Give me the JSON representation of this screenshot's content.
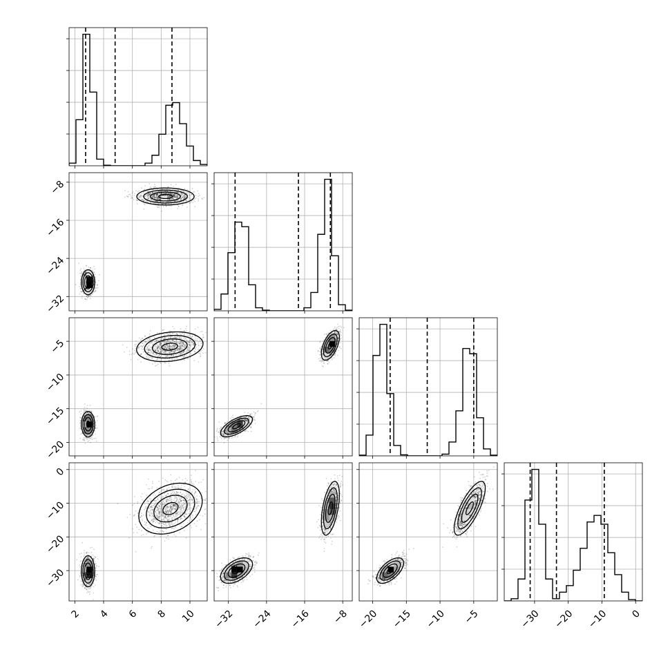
{
  "chart_data": {
    "type": "corner",
    "parameters": 4,
    "grid": true,
    "quantile_lines": "dashed",
    "axes": [
      {
        "range": [
          1.6,
          11.2
        ],
        "ticks": [
          2,
          4,
          6,
          8,
          10
        ],
        "tick_labels": [
          "2",
          "4",
          "6",
          "8",
          "10"
        ]
      },
      {
        "range": [
          -35,
          -6
        ],
        "ticks": [
          -32,
          -24,
          -16,
          -8
        ],
        "tick_labels": [
          "−32",
          "−24",
          "−16",
          "−8"
        ]
      },
      {
        "range": [
          -22,
          -1.5
        ],
        "ticks": [
          -20,
          -15,
          -10,
          -5
        ],
        "tick_labels": [
          "−20",
          "−15",
          "−10",
          "−5"
        ]
      },
      {
        "range": [
          -39,
          2
        ],
        "ticks": [
          -30,
          -20,
          -10,
          0
        ],
        "tick_labels": [
          "−30",
          "−20",
          "−10",
          "0"
        ]
      }
    ],
    "histograms": [
      {
        "param": 0,
        "bin_edges": [
          1.6,
          2.08,
          2.56,
          3.04,
          3.52,
          4.0,
          4.48,
          4.96,
          5.44,
          5.92,
          6.4,
          6.88,
          7.36,
          7.84,
          8.32,
          8.8,
          9.28,
          9.76,
          10.24,
          10.72,
          11.2
        ],
        "counts": [
          0.1,
          1.75,
          5.0,
          2.8,
          0.25,
          0.02,
          0,
          0,
          0,
          0,
          0,
          0.1,
          0.4,
          1.2,
          2.3,
          2.4,
          1.6,
          0.75,
          0.2,
          0.05
        ],
        "quantiles": [
          2.75,
          4.8,
          8.75
        ]
      },
      {
        "param": 1,
        "bin_edges": [
          -35,
          -33.55,
          -32.1,
          -30.65,
          -29.2,
          -27.75,
          -26.3,
          -24.85,
          -23.4,
          -21.95,
          -20.5,
          -19.05,
          -17.6,
          -16.15,
          -14.7,
          -13.25,
          -11.8,
          -10.35,
          -8.9,
          -7.45,
          -6.0
        ],
        "counts": [
          0.05,
          0.55,
          1.9,
          2.9,
          2.75,
          0.85,
          0.1,
          0.02,
          0,
          0,
          0,
          0,
          0,
          0.1,
          0.6,
          2.5,
          4.3,
          1.8,
          0.2,
          0.02
        ],
        "quantiles": [
          -30.6,
          -17.3,
          -10.6
        ]
      },
      {
        "param": 2,
        "bin_edges": [
          -22,
          -20.975,
          -19.95,
          -18.925,
          -17.9,
          -16.875,
          -15.85,
          -14.825,
          -13.8,
          -12.775,
          -11.75,
          -10.725,
          -9.7,
          -8.675,
          -7.65,
          -6.625,
          -5.6,
          -4.575,
          -3.55,
          -2.525,
          -1.5
        ],
        "counts": [
          0.02,
          0.6,
          2.9,
          3.8,
          1.8,
          0.3,
          0.03,
          0,
          0,
          0,
          0,
          0,
          0.05,
          0.4,
          1.3,
          3.1,
          2.95,
          1.1,
          0.2,
          0.02
        ],
        "quantiles": [
          -17.4,
          -11.9,
          -5.0
        ]
      },
      {
        "param": 3,
        "bin_edges": [
          -39,
          -36.95,
          -34.9,
          -32.85,
          -30.8,
          -28.75,
          -26.7,
          -24.65,
          -22.6,
          -20.55,
          -18.5,
          -16.45,
          -14.4,
          -12.35,
          -10.3,
          -8.25,
          -6.2,
          -4.15,
          -2.1,
          -0.05,
          2.0
        ],
        "counts": [
          0,
          0.05,
          0.5,
          2.3,
          3.0,
          1.75,
          0.5,
          0.05,
          0.2,
          0.35,
          0.7,
          1.2,
          1.8,
          1.95,
          1.75,
          1.1,
          0.6,
          0.2,
          0.03,
          0
        ],
        "quantiles": [
          -31.3,
          -23.5,
          -9.3
        ]
      }
    ],
    "scatter_pairs": [
      {
        "x_param": 0,
        "y_param": 1,
        "clusters": [
          {
            "mean": [
              2.92,
              -29.0
            ],
            "std": [
              0.22,
              1.25
            ],
            "corr": 0.0
          },
          {
            "mean": [
              8.3,
              -11.0
            ],
            "std": [
              0.95,
              0.85
            ],
            "corr": 0.0
          }
        ]
      },
      {
        "x_param": 0,
        "y_param": 2,
        "clusters": [
          {
            "mean": [
              2.92,
              -17.3
            ],
            "std": [
              0.22,
              0.9
            ],
            "corr": 0.0
          },
          {
            "mean": [
              8.6,
              -5.8
            ],
            "std": [
              1.1,
              1.05
            ],
            "corr": 0.2
          }
        ]
      },
      {
        "x_param": 1,
        "y_param": 2,
        "clusters": [
          {
            "mean": [
              -30.3,
              -17.6
            ],
            "std": [
              1.6,
              0.75
            ],
            "corr": 0.65
          },
          {
            "mean": [
              -10.6,
              -5.6
            ],
            "std": [
              0.9,
              1.05
            ],
            "corr": 0.55
          }
        ]
      },
      {
        "x_param": 0,
        "y_param": 3,
        "clusters": [
          {
            "mean": [
              2.92,
              -30.2
            ],
            "std": [
              0.22,
              2.2
            ],
            "corr": 0.0
          },
          {
            "mean": [
              8.65,
              -11.6
            ],
            "std": [
              1.05,
              3.6
            ],
            "corr": 0.3
          }
        ]
      },
      {
        "x_param": 1,
        "y_param": 3,
        "clusters": [
          {
            "mean": [
              -30.3,
              -30.0
            ],
            "std": [
              1.6,
              1.8
            ],
            "corr": 0.5
          },
          {
            "mean": [
              -10.6,
              -11.5
            ],
            "std": [
              0.9,
              3.8
            ],
            "corr": 0.5
          }
        ]
      },
      {
        "x_param": 2,
        "y_param": 3,
        "clusters": [
          {
            "mean": [
              -17.4,
              -30.0
            ],
            "std": [
              0.95,
              1.8
            ],
            "corr": 0.6
          },
          {
            "mean": [
              -5.6,
              -11.5
            ],
            "std": [
              1.1,
              3.8
            ],
            "corr": 0.75
          }
        ]
      }
    ]
  }
}
